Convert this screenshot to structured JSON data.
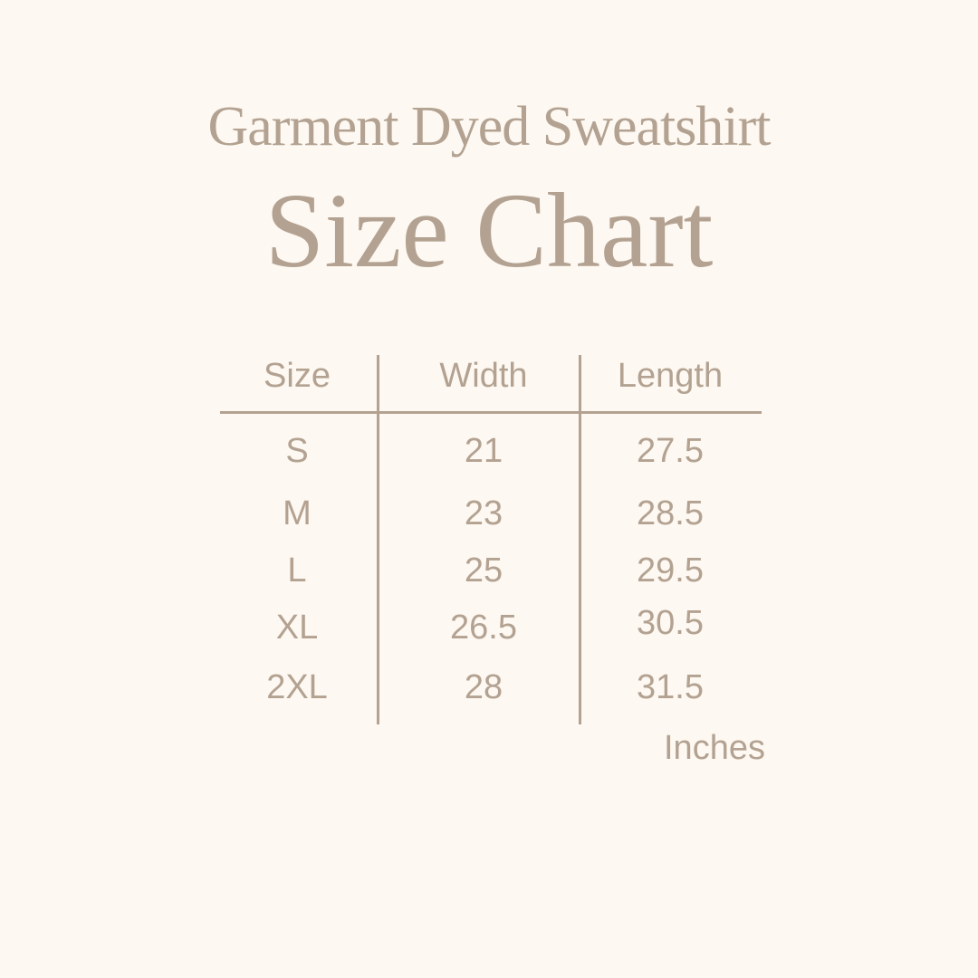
{
  "header": {
    "title": "Garment Dyed Sweatshirt",
    "subtitle": "Size Chart"
  },
  "colors": {
    "background": "#fdf8f1",
    "text": "#b3a291"
  },
  "table": {
    "columns": [
      "Size",
      "Width",
      "Length"
    ],
    "rows": [
      [
        "S",
        "21",
        "27.5"
      ],
      [
        "M",
        "23",
        "28.5"
      ],
      [
        "L",
        "25",
        "29.5"
      ],
      [
        "XL",
        "26.5",
        "30.5"
      ],
      [
        "2XL",
        "28",
        "31.5"
      ]
    ],
    "unit": "Inches"
  }
}
